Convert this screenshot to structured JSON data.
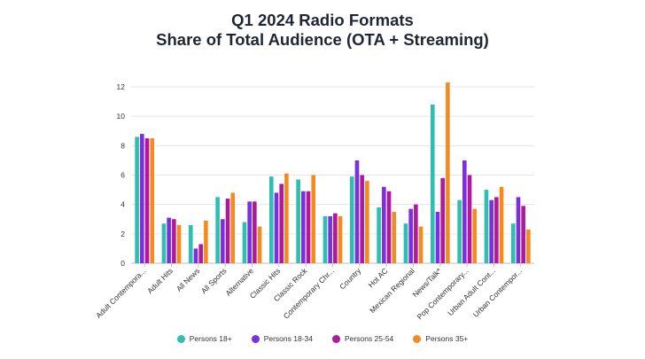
{
  "chart_data": {
    "type": "bar",
    "title_line1": "Q1 2024 Radio Formats",
    "title_line2": "Share of Total Audience (OTA + Streaming)",
    "ylim": [
      0,
      12
    ],
    "yticks": [
      0,
      2,
      4,
      6,
      8,
      10,
      12
    ],
    "grid": true,
    "legend_position": "bottom",
    "categories": [
      "Adult Contempora...",
      "Adult Hits",
      "All News",
      "All Sports",
      "Alternative",
      "Classic Hits",
      "Classic Rock",
      "Contemporary Chr...",
      "Country",
      "Hot AC",
      "Mexican Regional",
      "News/Talk*",
      "Pop Contemporary...",
      "Urban Adult Cont...",
      "Urban Contempor..."
    ],
    "series": [
      {
        "name": "Persons 18+",
        "color": "#2ebfb3",
        "values": [
          8.6,
          2.7,
          2.6,
          4.5,
          2.8,
          5.9,
          5.7,
          3.2,
          5.9,
          3.8,
          2.7,
          10.8,
          4.3,
          5.0,
          2.7
        ]
      },
      {
        "name": "Persons 18-34",
        "color": "#7b2fe0",
        "values": [
          8.8,
          3.1,
          1.0,
          3.0,
          4.2,
          4.8,
          4.9,
          3.2,
          7.0,
          5.2,
          3.7,
          3.5,
          7.0,
          4.3,
          4.5
        ]
      },
      {
        "name": "Persons 25-54",
        "color": "#b0189e",
        "values": [
          8.5,
          3.0,
          1.3,
          4.4,
          4.2,
          5.4,
          4.9,
          3.4,
          6.0,
          4.9,
          4.0,
          5.8,
          6.0,
          4.5,
          3.9
        ]
      },
      {
        "name": "Persons 35+",
        "color": "#f58a1f",
        "values": [
          8.5,
          2.6,
          2.9,
          4.8,
          2.5,
          6.1,
          6.0,
          3.2,
          5.6,
          3.5,
          2.5,
          12.3,
          3.7,
          5.2,
          2.3
        ]
      }
    ]
  }
}
